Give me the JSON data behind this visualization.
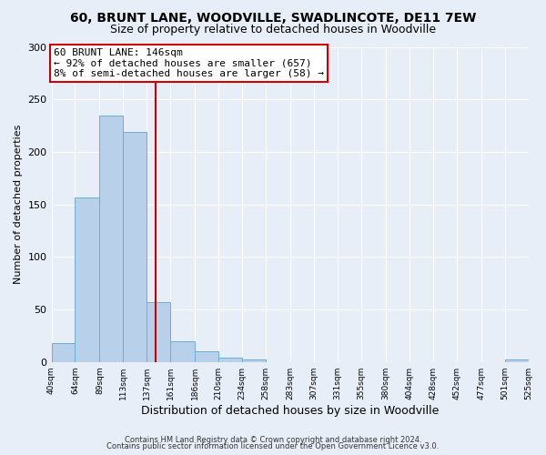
{
  "title": "60, BRUNT LANE, WOODVILLE, SWADLINCOTE, DE11 7EW",
  "subtitle": "Size of property relative to detached houses in Woodville",
  "xlabel": "Distribution of detached houses by size in Woodville",
  "ylabel": "Number of detached properties",
  "bar_edges": [
    40,
    64,
    89,
    113,
    137,
    161,
    186,
    210,
    234,
    258,
    283,
    307,
    331,
    355,
    380,
    404,
    428,
    452,
    477,
    501,
    525
  ],
  "bar_heights": [
    18,
    157,
    235,
    219,
    57,
    20,
    10,
    4,
    2,
    0,
    0,
    0,
    0,
    0,
    0,
    0,
    0,
    0,
    0,
    2
  ],
  "bar_color": "#b8d0ea",
  "bar_edge_color": "#6aaed6",
  "vline_x": 146,
  "vline_color": "#cc0000",
  "ylim": [
    0,
    300
  ],
  "yticks": [
    0,
    50,
    100,
    150,
    200,
    250,
    300
  ],
  "annotation_title": "60 BRUNT LANE: 146sqm",
  "annotation_line1": "← 92% of detached houses are smaller (657)",
  "annotation_line2": "8% of semi-detached houses are larger (58) →",
  "annotation_box_color": "#ffffff",
  "annotation_box_edge": "#cc0000",
  "footer1": "Contains HM Land Registry data © Crown copyright and database right 2024.",
  "footer2": "Contains public sector information licensed under the Open Government Licence v3.0.",
  "tick_labels": [
    "40sqm",
    "64sqm",
    "89sqm",
    "113sqm",
    "137sqm",
    "161sqm",
    "186sqm",
    "210sqm",
    "234sqm",
    "258sqm",
    "283sqm",
    "307sqm",
    "331sqm",
    "355sqm",
    "380sqm",
    "404sqm",
    "428sqm",
    "452sqm",
    "477sqm",
    "501sqm",
    "525sqm"
  ],
  "background_color": "#e8eef8",
  "grid_color": "#ffffff",
  "title_fontsize": 10,
  "subtitle_fontsize": 9,
  "ylabel_fontsize": 8,
  "xlabel_fontsize": 9,
  "tick_fontsize": 6.5,
  "footer_fontsize": 6,
  "annotation_fontsize": 8
}
